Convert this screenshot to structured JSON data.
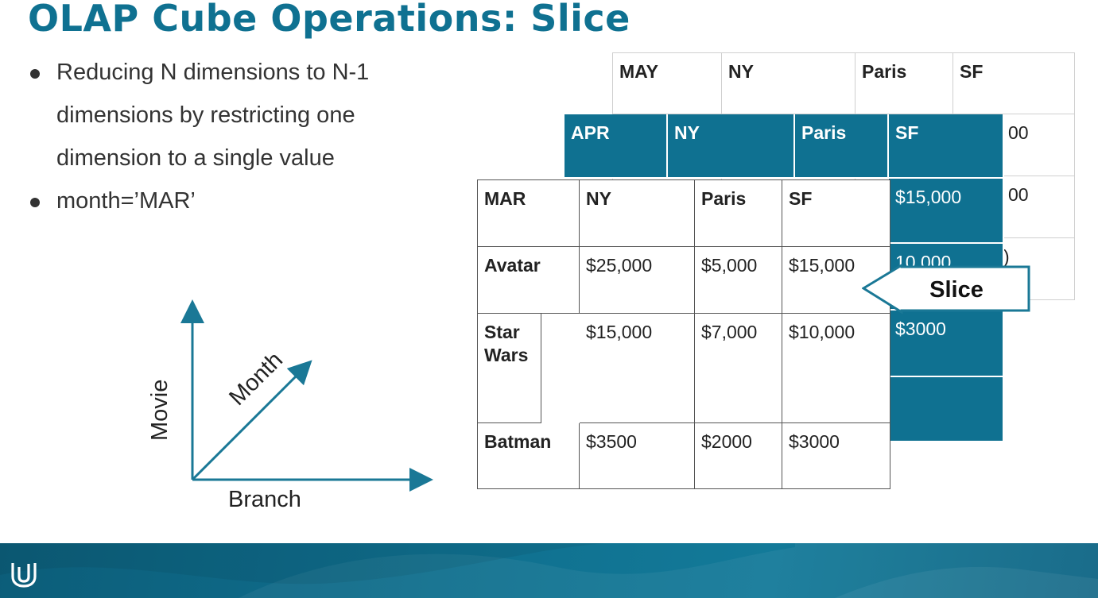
{
  "slide": {
    "title": "OLAP Cube Operations: Slice",
    "bullets": [
      "Reducing N dimensions to N-1 dimensions by restricting one dimension to a single value",
      "month=’MAR’"
    ]
  },
  "axes": {
    "vertical": "Movie",
    "diagonal": "Month",
    "horizontal": "Branch"
  },
  "cube": {
    "may": {
      "header": [
        "MAY",
        "NY",
        "Paris",
        "SF"
      ],
      "partial_values": [
        "00",
        "00",
        ")"
      ]
    },
    "apr": {
      "header": [
        "APR",
        "NY",
        "Paris",
        "SF"
      ],
      "sf_values": [
        "$15,000",
        "10,000",
        "$3000",
        ""
      ]
    },
    "mar": {
      "header": [
        "MAR",
        "NY",
        "Paris",
        "SF"
      ],
      "rows": [
        [
          "Avatar",
          "$25,000",
          "$5,000",
          "$15,000"
        ],
        [
          "Star Wars",
          "$15,000",
          "$7,000",
          "$10,000"
        ],
        [
          "Batman",
          "$3500",
          "$2000",
          "$3000"
        ]
      ]
    }
  },
  "slice_label": "Slice",
  "colors": {
    "accent": "#0f7191",
    "footer": "#0e6584"
  },
  "footer": {
    "logo": "udacity-logo-icon"
  }
}
